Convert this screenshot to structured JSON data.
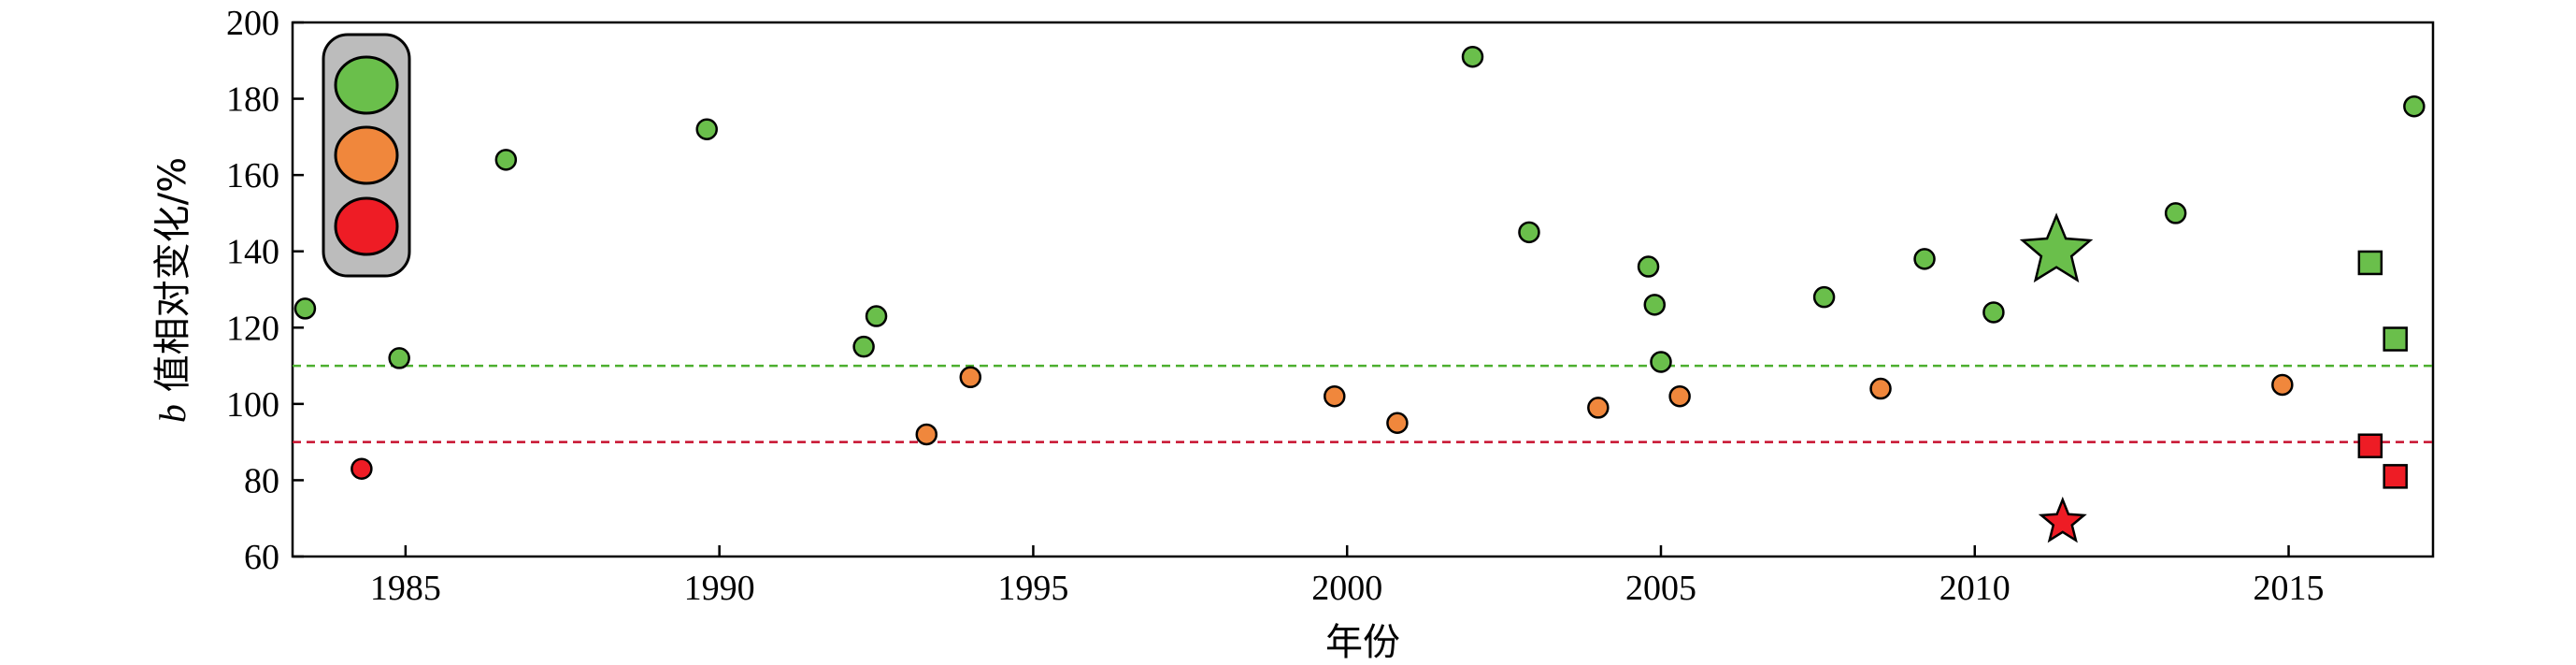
{
  "chart_data": {
    "type": "scatter",
    "xlabel": "年份",
    "ylabel_prefix": "b",
    "ylabel_rest": " 值相对变化/%",
    "xlim": [
      1983.2,
      2017.3
    ],
    "ylim": [
      60,
      200
    ],
    "xticks": [
      1985,
      1990,
      1995,
      2000,
      2005,
      2010,
      2015
    ],
    "yticks": [
      60,
      80,
      100,
      120,
      140,
      160,
      180,
      200
    ],
    "grid": false,
    "reference_lines": [
      {
        "y": 110,
        "color": "#4caf2f",
        "style": "dashed"
      },
      {
        "y": 90,
        "color": "#c8102e",
        "style": "dashed"
      }
    ],
    "colors": {
      "green": "#6abf4b",
      "orange": "#f0873c",
      "red": "#ee1c25"
    },
    "legend": {
      "placement": "top-left",
      "style": "traffic-light",
      "colors": [
        "green",
        "orange",
        "red"
      ]
    },
    "points": [
      {
        "x": 1983.4,
        "y": 125,
        "color": "green",
        "marker": "circle"
      },
      {
        "x": 1984.3,
        "y": 83,
        "color": "red",
        "marker": "circle"
      },
      {
        "x": 1984.9,
        "y": 112,
        "color": "green",
        "marker": "circle"
      },
      {
        "x": 1986.6,
        "y": 164,
        "color": "green",
        "marker": "circle"
      },
      {
        "x": 1989.8,
        "y": 172,
        "color": "green",
        "marker": "circle"
      },
      {
        "x": 1992.3,
        "y": 115,
        "color": "green",
        "marker": "circle"
      },
      {
        "x": 1992.5,
        "y": 123,
        "color": "green",
        "marker": "circle"
      },
      {
        "x": 1993.3,
        "y": 92,
        "color": "orange",
        "marker": "circle"
      },
      {
        "x": 1994.0,
        "y": 107,
        "color": "orange",
        "marker": "circle"
      },
      {
        "x": 1999.8,
        "y": 102,
        "color": "orange",
        "marker": "circle"
      },
      {
        "x": 2000.8,
        "y": 95,
        "color": "orange",
        "marker": "circle"
      },
      {
        "x": 2002.0,
        "y": 191,
        "color": "green",
        "marker": "circle"
      },
      {
        "x": 2002.9,
        "y": 145,
        "color": "green",
        "marker": "circle"
      },
      {
        "x": 2004.0,
        "y": 99,
        "color": "orange",
        "marker": "circle"
      },
      {
        "x": 2004.8,
        "y": 136,
        "color": "green",
        "marker": "circle"
      },
      {
        "x": 2004.9,
        "y": 126,
        "color": "green",
        "marker": "circle"
      },
      {
        "x": 2005.0,
        "y": 111,
        "color": "green",
        "marker": "circle"
      },
      {
        "x": 2005.3,
        "y": 102,
        "color": "orange",
        "marker": "circle"
      },
      {
        "x": 2007.6,
        "y": 128,
        "color": "green",
        "marker": "circle"
      },
      {
        "x": 2008.5,
        "y": 104,
        "color": "orange",
        "marker": "circle"
      },
      {
        "x": 2009.2,
        "y": 138,
        "color": "green",
        "marker": "circle"
      },
      {
        "x": 2010.3,
        "y": 124,
        "color": "green",
        "marker": "circle"
      },
      {
        "x": 2011.3,
        "y": 140,
        "color": "green",
        "marker": "star-large"
      },
      {
        "x": 2011.4,
        "y": 69,
        "color": "red",
        "marker": "star-small"
      },
      {
        "x": 2013.2,
        "y": 150,
        "color": "green",
        "marker": "circle"
      },
      {
        "x": 2014.9,
        "y": 105,
        "color": "orange",
        "marker": "circle"
      },
      {
        "x": 2016.3,
        "y": 137,
        "color": "green",
        "marker": "square"
      },
      {
        "x": 2016.3,
        "y": 89,
        "color": "red",
        "marker": "square"
      },
      {
        "x": 2016.7,
        "y": 117,
        "color": "green",
        "marker": "square"
      },
      {
        "x": 2016.7,
        "y": 81,
        "color": "red",
        "marker": "square"
      },
      {
        "x": 2017.0,
        "y": 178,
        "color": "green",
        "marker": "circle"
      }
    ]
  }
}
